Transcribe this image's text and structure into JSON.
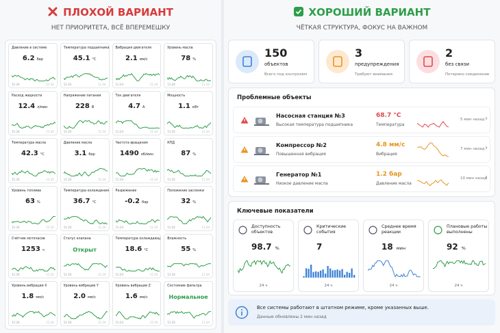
{
  "left": {
    "title": "ПЛОХОЙ ВАРИАНТ",
    "subtitle": "НЕТ ПРИОРИТЕТА, ВСЁ ВПЕРЕМЕШКУ",
    "time_start": "11:24",
    "time_end": "11:34",
    "tiles": [
      {
        "label": "Давление в системе",
        "value": "6.2",
        "unit": "бар"
      },
      {
        "label": "Температура подшипника",
        "value": "45.1",
        "unit": "°C"
      },
      {
        "label": "Вибрация двигателя",
        "value": "2.1",
        "unit": "мм/с"
      },
      {
        "label": "Уровень масла",
        "value": "78",
        "unit": "%"
      },
      {
        "label": "Расход жидкости",
        "value": "12.4",
        "unit": "л/мин"
      },
      {
        "label": "Напряжение питания",
        "value": "228",
        "unit": "В"
      },
      {
        "label": "Ток двигателя",
        "value": "4.7",
        "unit": "А"
      },
      {
        "label": "Мощность",
        "value": "1.1",
        "unit": "кВт"
      },
      {
        "label": "Температура масла",
        "value": "42.3",
        "unit": "°C"
      },
      {
        "label": "Давление масла",
        "value": "3.1",
        "unit": "бар"
      },
      {
        "label": "Частота вращения",
        "value": "1490",
        "unit": "об/мин"
      },
      {
        "label": "КПД",
        "value": "87",
        "unit": "%"
      },
      {
        "label": "Уровень топлива",
        "value": "63",
        "unit": "%"
      },
      {
        "label": "Температура охлаждения",
        "value": "36.7",
        "unit": "°C"
      },
      {
        "label": "Разрежение",
        "value": "-0.2",
        "unit": "бар"
      },
      {
        "label": "Положение заслонки",
        "value": "32",
        "unit": "%"
      },
      {
        "label": "Счётчик моточасов",
        "value": "1253",
        "unit": "ч"
      },
      {
        "label": "Статус клапана",
        "value": "Открыт",
        "color": "#2e9e4a"
      },
      {
        "label": "Температура охлаждающей среды",
        "value": "18.6",
        "unit": "°C"
      },
      {
        "label": "Влажность",
        "value": "55",
        "unit": "%"
      },
      {
        "label": "Уровень вибрации X",
        "value": "1.8",
        "unit": "мм/с"
      },
      {
        "label": "Уровень вибрации Y",
        "value": "2.0",
        "unit": "мм/с"
      },
      {
        "label": "Уровень вибрации Z",
        "value": "1.6",
        "unit": "мм/с"
      },
      {
        "label": "Состояние фильтра",
        "value": "Нормальное",
        "color": "#2e9e4a"
      }
    ]
  },
  "right": {
    "title": "ХОРОШИЙ ВАРИАНТ",
    "subtitle": "ЧЁТКАЯ СТРУКТУРА, ФОКУС НА ВАЖНОМ",
    "summary": [
      {
        "value": "150",
        "label": "объектов",
        "note": "Всего под контролем",
        "color": "#3b82d6",
        "bg": "#dbe9fb"
      },
      {
        "value": "3",
        "label": "предупреждения",
        "note": "Требуют внимания",
        "color": "#e8941f",
        "bg": "#fde9cf"
      },
      {
        "value": "2",
        "label": "без связи",
        "note": "Потеряно соединение",
        "color": "#e0474c",
        "bg": "#fbdfe0"
      }
    ],
    "problems": {
      "title": "Проблемные объекты",
      "items": [
        {
          "name": "Насосная станция №3",
          "issue": "Высокая температура подшипника",
          "value": "68.7 °C",
          "metric": "Температура",
          "time": "5 мин назад",
          "color": "#e0474c"
        },
        {
          "name": "Компрессор №2",
          "issue": "Повышенная вибрация",
          "value": "4.8 мм/с",
          "metric": "Вибрация",
          "time": "7 мин назад",
          "color": "#e8941f"
        },
        {
          "name": "Генератор №1",
          "issue": "Низкое давление масла",
          "value": "1.2 бар",
          "metric": "Давление масла",
          "time": "10 мин назад",
          "color": "#e8941f"
        }
      ]
    },
    "kpis": {
      "title": "Ключевые показатели",
      "items": [
        {
          "label": "Доступность объектов",
          "value": "98.7",
          "unit": "%",
          "period": "24 ч",
          "color": "#2e9e4a"
        },
        {
          "label": "Критические события",
          "value": "7",
          "period": "24 ч",
          "color": "#3b82d6"
        },
        {
          "label": "Среднее время реакции",
          "value": "18",
          "unit": "мин",
          "period": "24 ч",
          "color": "#3b82d6"
        },
        {
          "label": "Плановые работы выполнены",
          "value": "92",
          "unit": "%",
          "period": "24 ч",
          "color": "#2e9e4a"
        }
      ]
    },
    "info": {
      "text": "Все системы работают в штатном режиме, кроме указанных выше.",
      "updated": "Данные обновлены 2 мин назад"
    }
  }
}
